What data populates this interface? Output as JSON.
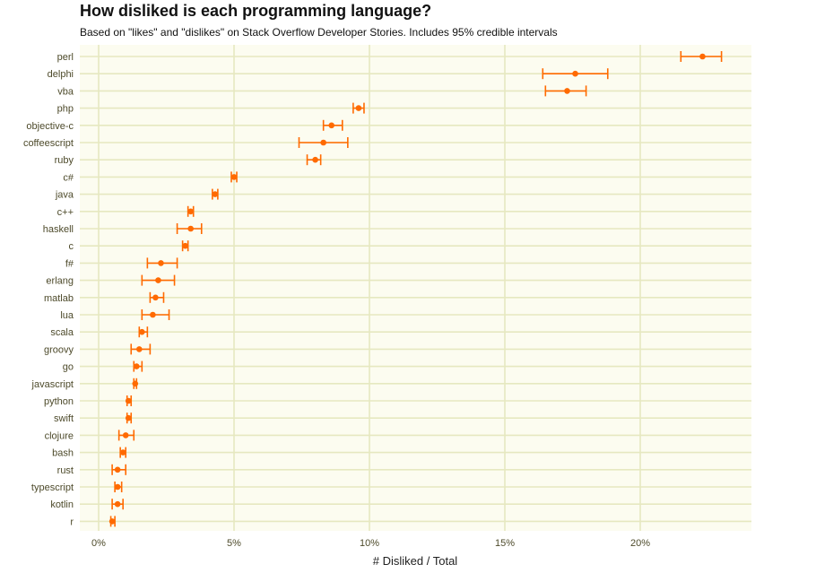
{
  "title": "How disliked is each programming language?",
  "subtitle": "Based on \"likes\" and \"dislikes\" on Stack Overflow Developer Stories. Includes 95% credible intervals",
  "colors": {
    "background": "#fcfcf0",
    "grid": "#e6e8c0",
    "point": "#ff6a00",
    "text": "#4d4a2a"
  },
  "chart_data": {
    "type": "scatter",
    "subtype": "dot-with-error-bars",
    "title": "How disliked is each programming language?",
    "subtitle": "Based on \"likes\" and \"dislikes\" on Stack Overflow Developer Stories. Includes 95% credible intervals",
    "xlabel": "# Disliked / Total",
    "ylabel": "",
    "xlim": [
      -0.7,
      24.2
    ],
    "x_ticks": [
      0,
      5,
      10,
      15,
      20
    ],
    "x_tick_labels": [
      "0%",
      "5%",
      "10%",
      "15%",
      "20%"
    ],
    "unit": "percent",
    "grid": true,
    "legend": "none",
    "categories": [
      "perl",
      "delphi",
      "vba",
      "php",
      "objective-c",
      "coffeescript",
      "ruby",
      "c#",
      "java",
      "c++",
      "haskell",
      "c",
      "f#",
      "erlang",
      "matlab",
      "lua",
      "scala",
      "groovy",
      "go",
      "javascript",
      "python",
      "swift",
      "clojure",
      "bash",
      "rust",
      "typescript",
      "kotlin",
      "r"
    ],
    "series": [
      {
        "values": [
          22.3,
          17.6,
          17.3,
          9.6,
          8.6,
          8.3,
          8.0,
          5.0,
          4.3,
          3.4,
          3.4,
          3.2,
          2.3,
          2.2,
          2.1,
          2.0,
          1.6,
          1.5,
          1.4,
          1.35,
          1.1,
          1.1,
          1.0,
          0.9,
          0.7,
          0.7,
          0.7,
          0.5
        ],
        "lower": [
          21.5,
          16.4,
          16.5,
          9.4,
          8.3,
          7.4,
          7.7,
          4.9,
          4.2,
          3.3,
          2.9,
          3.1,
          1.8,
          1.6,
          1.9,
          1.6,
          1.5,
          1.2,
          1.3,
          1.3,
          1.05,
          1.05,
          0.75,
          0.8,
          0.5,
          0.6,
          0.5,
          0.45
        ],
        "upper": [
          23.0,
          18.8,
          18.0,
          9.8,
          9.0,
          9.2,
          8.2,
          5.1,
          4.4,
          3.5,
          3.8,
          3.3,
          2.9,
          2.8,
          2.4,
          2.6,
          1.8,
          1.9,
          1.6,
          1.4,
          1.2,
          1.2,
          1.3,
          1.0,
          1.0,
          0.85,
          0.9,
          0.6
        ]
      }
    ]
  }
}
